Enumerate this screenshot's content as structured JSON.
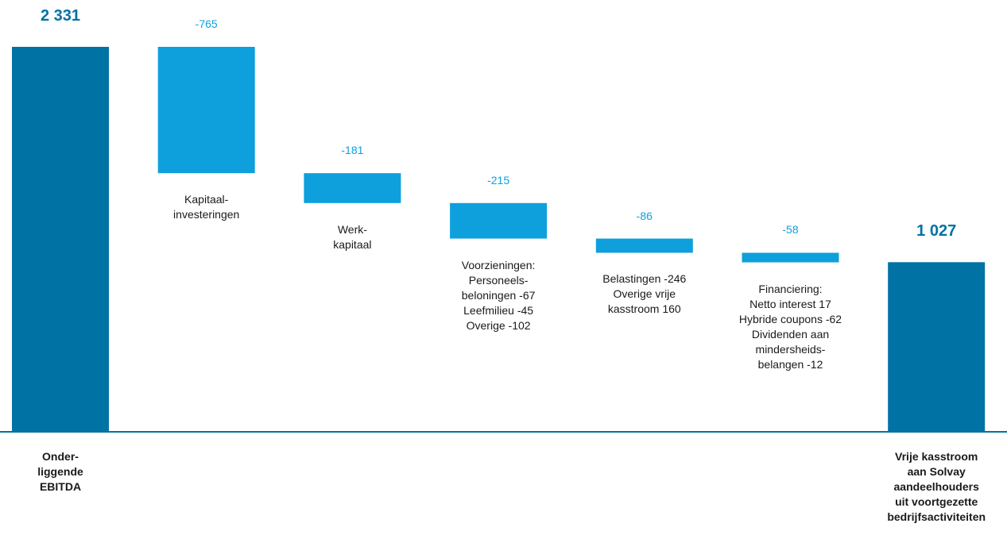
{
  "chart_data": {
    "type": "waterfall",
    "categories": [
      "Onder-\nliggende\nEBITDA",
      "Kapitaal-\ninvesteringen",
      "Werk-\nkapitaal",
      "Voorzieningen:\nPersoneels-\nbeloningen -67\nLeefmilieu -45\nOverige -102",
      "Belastingen -246\nOverige vrije\nkasstroom 160",
      "Financiering:\nNetto interest 17\nHybride coupons -62\nDividenden aan\nmindersheids-\nbelangen -12",
      "Vrije kasstroom\naan Solvay\naandeelhouders\nuit voortgezette\nbedrijfsactiviteiten"
    ],
    "values": [
      2331,
      -765,
      -181,
      -215,
      -86,
      -58,
      1027
    ],
    "value_labels": [
      "2 331",
      "-765",
      "-181",
      "-215",
      "-86",
      "-58",
      "1 027"
    ],
    "totals": [
      true,
      false,
      false,
      false,
      false,
      false,
      true
    ],
    "total_color": "#0072a3",
    "delta_color": "#0ea0dc"
  }
}
